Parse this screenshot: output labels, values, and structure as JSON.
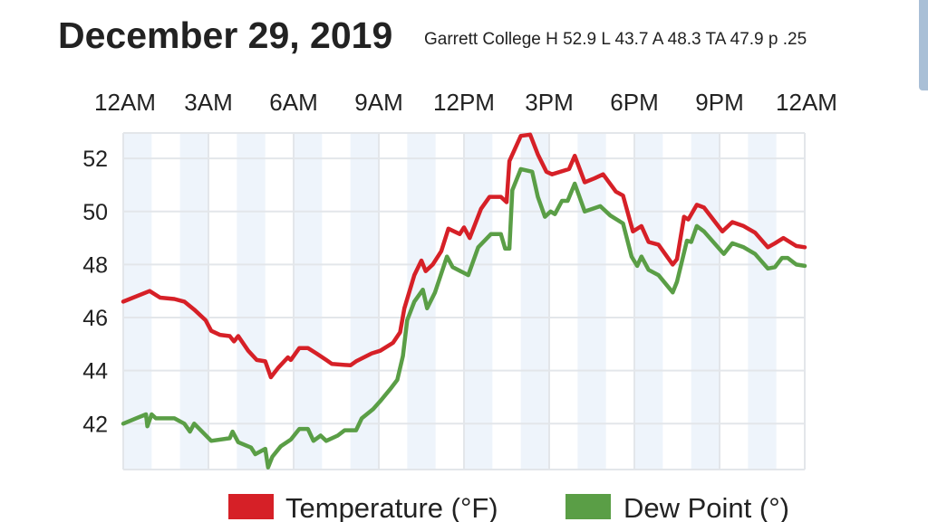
{
  "chart_data": {
    "type": "line",
    "title": "December 29, 2019",
    "subtitle": "Garrett College H 52.9 L 43.7 A 48.3 TA 47.9 p .25",
    "xlabel": "",
    "ylabel": "",
    "x_ticks": [
      "12AM",
      "3AM",
      "6AM",
      "9AM",
      "12PM",
      "3PM",
      "6PM",
      "9PM",
      "12AM"
    ],
    "x_range_hours": [
      0,
      24
    ],
    "y_ticks": [
      42,
      44,
      46,
      48,
      50,
      52
    ],
    "ylim": [
      40.27,
      52.96
    ],
    "grid": true,
    "legend_position": "bottom",
    "series": [
      {
        "name": "Temperature (°F)",
        "color": "#d62027",
        "x": [
          0,
          0.93,
          1.3,
          1.8,
          2.15,
          2.5,
          2.9,
          3.1,
          3.4,
          3.75,
          3.9,
          4.05,
          4.4,
          4.7,
          5.0,
          5.2,
          5.45,
          5.8,
          5.9,
          6.2,
          6.5,
          6.8,
          7.15,
          7.35,
          8.0,
          8.2,
          8.75,
          9.05,
          9.5,
          9.75,
          9.9,
          10.25,
          10.5,
          10.65,
          10.9,
          11.2,
          11.45,
          11.85,
          12.0,
          12.2,
          12.6,
          12.9,
          13.3,
          13.5,
          13.6,
          14.0,
          14.33,
          14.6,
          14.9,
          15.1,
          15.7,
          15.9,
          16.25,
          16.6,
          16.9,
          17.35,
          17.6,
          17.95,
          18.25,
          18.5,
          18.85,
          19.35,
          19.5,
          19.75,
          19.9,
          20.2,
          20.45,
          21.1,
          21.45,
          21.85,
          22.25,
          22.7,
          22.95,
          23.25,
          23.7,
          24
        ],
        "y": [
          46.6,
          47.0,
          46.75,
          46.7,
          46.6,
          46.3,
          45.9,
          45.5,
          45.35,
          45.3,
          45.1,
          45.3,
          44.75,
          44.4,
          44.35,
          43.75,
          44.1,
          44.5,
          44.4,
          44.85,
          44.85,
          44.65,
          44.4,
          44.25,
          44.2,
          44.35,
          44.65,
          44.75,
          45.05,
          45.45,
          46.35,
          47.6,
          48.15,
          47.75,
          48.0,
          48.5,
          49.35,
          49.15,
          49.4,
          49.0,
          50.1,
          50.55,
          50.55,
          50.35,
          51.9,
          52.85,
          52.9,
          52.15,
          51.5,
          51.4,
          51.6,
          52.1,
          51.1,
          51.25,
          51.4,
          50.75,
          50.6,
          49.25,
          49.45,
          48.85,
          48.75,
          48.0,
          48.2,
          49.8,
          49.7,
          50.25,
          50.15,
          49.25,
          49.6,
          49.45,
          49.2,
          48.65,
          48.8,
          49.0,
          48.7,
          48.65
        ]
      },
      {
        "name": "Dew Point (°)",
        "color": "#5a9e46",
        "x": [
          0,
          0.45,
          0.8,
          0.85,
          1.0,
          1.15,
          1.8,
          2.15,
          2.35,
          2.5,
          3.1,
          3.75,
          3.85,
          4.05,
          4.5,
          4.65,
          5.0,
          5.1,
          5.25,
          5.55,
          5.9,
          6.2,
          6.5,
          6.7,
          6.95,
          7.15,
          7.55,
          7.8,
          8.2,
          8.4,
          8.8,
          9.05,
          9.4,
          9.65,
          9.85,
          10.0,
          10.25,
          10.55,
          10.7,
          10.98,
          11.4,
          11.6,
          12.15,
          12.5,
          12.95,
          13.3,
          13.45,
          13.6,
          13.7,
          14.0,
          14.4,
          14.6,
          14.85,
          15.05,
          15.2,
          15.45,
          15.65,
          15.9,
          16.25,
          16.8,
          17.15,
          17.6,
          17.9,
          18.1,
          18.25,
          18.5,
          18.85,
          19.35,
          19.5,
          19.85,
          20.0,
          20.2,
          20.45,
          21.15,
          21.45,
          21.85,
          22.25,
          22.7,
          22.95,
          23.2,
          23.4,
          23.7,
          24
        ],
        "y": [
          42.0,
          42.2,
          42.35,
          41.9,
          42.35,
          42.2,
          42.2,
          42.0,
          41.7,
          42.0,
          41.35,
          41.45,
          41.7,
          41.3,
          41.1,
          40.85,
          41.05,
          40.35,
          40.75,
          41.15,
          41.4,
          41.8,
          41.8,
          41.35,
          41.55,
          41.35,
          41.55,
          41.75,
          41.75,
          42.2,
          42.55,
          42.85,
          43.3,
          43.65,
          44.55,
          45.9,
          46.6,
          47.05,
          46.35,
          46.95,
          48.3,
          47.9,
          47.6,
          48.65,
          49.15,
          49.15,
          48.6,
          48.6,
          50.8,
          51.6,
          51.5,
          50.55,
          49.8,
          50.0,
          49.9,
          50.4,
          50.4,
          51.05,
          50.0,
          50.2,
          49.85,
          49.55,
          48.3,
          47.95,
          48.3,
          47.8,
          47.6,
          46.95,
          47.35,
          48.9,
          48.85,
          49.45,
          49.25,
          48.4,
          48.8,
          48.65,
          48.4,
          47.85,
          47.9,
          48.25,
          48.25,
          48.0,
          47.95
        ]
      }
    ]
  },
  "colors": {
    "band": "#eef4fb",
    "grid": "#e3e6ea"
  }
}
